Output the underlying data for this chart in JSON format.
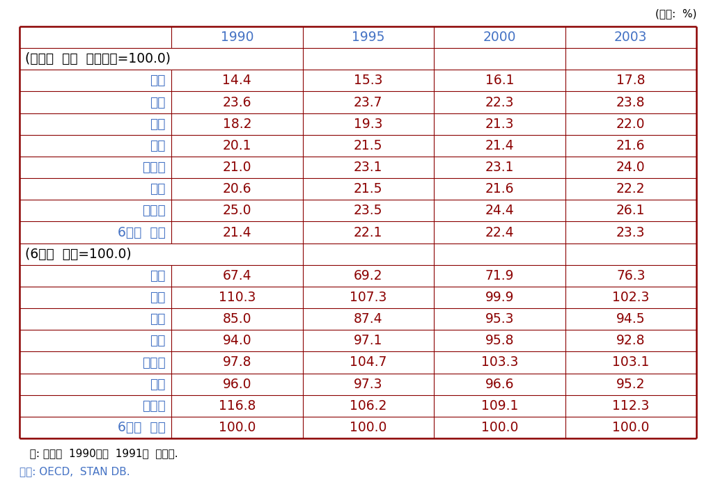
{
  "unit_label": "(단위:  %)",
  "col_headers": [
    "",
    "1990",
    "1995",
    "2000",
    "2003"
  ],
  "section1_header": "(전산업  경상  부가가치=100.0)",
  "section1_rows": [
    [
      "한국",
      "14.4",
      "15.3",
      "16.1",
      "17.8"
    ],
    [
      "미국",
      "23.6",
      "23.7",
      "22.3",
      "23.8"
    ],
    [
      "일본",
      "18.2",
      "19.3",
      "21.3",
      "22.0"
    ],
    [
      "독일",
      "20.1",
      "21.5",
      "21.4",
      "21.6"
    ],
    [
      "프랑스",
      "21.0",
      "23.1",
      "23.1",
      "24.0"
    ],
    [
      "영국",
      "20.6",
      "21.5",
      "21.6",
      "22.2"
    ],
    [
      "스웨덴",
      "25.0",
      "23.5",
      "24.4",
      "26.1"
    ],
    [
      "6개국  평균",
      "21.4",
      "22.1",
      "22.4",
      "23.3"
    ]
  ],
  "section2_header": "(6개국  평균=100.0)",
  "section2_rows": [
    [
      "한국",
      "67.4",
      "69.2",
      "71.9",
      "76.3"
    ],
    [
      "미국",
      "110.3",
      "107.3",
      "99.9",
      "102.3"
    ],
    [
      "일본",
      "85.0",
      "87.4",
      "95.3",
      "94.5"
    ],
    [
      "독일",
      "94.0",
      "97.1",
      "95.8",
      "92.8"
    ],
    [
      "프랑스",
      "97.8",
      "104.7",
      "103.3",
      "103.1"
    ],
    [
      "영국",
      "96.0",
      "97.3",
      "96.6",
      "95.2"
    ],
    [
      "스웨덴",
      "116.8",
      "106.2",
      "109.1",
      "112.3"
    ],
    [
      "6개국  평균",
      "100.0",
      "100.0",
      "100.0",
      "100.0"
    ]
  ],
  "footnote1": "  주: 독일의  1990년은  1991년  비중임.",
  "footnote2": "자료: OECD,  STAN DB.",
  "border_color": "#8B0000",
  "teal_color": "#4472C4",
  "number_color": "#8B0000"
}
